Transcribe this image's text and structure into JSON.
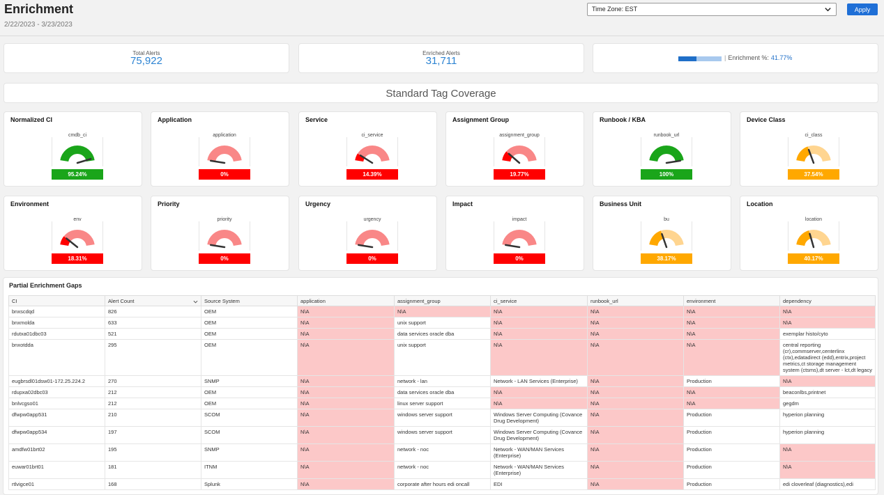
{
  "header": {
    "title": "Enrichment",
    "date_range": "2/22/2023 - 3/23/2023",
    "timezone": "Time Zone: EST",
    "apply_label": "Apply"
  },
  "kpis": {
    "total_label": "Total Alerts",
    "total_value": "75,922",
    "enriched_label": "Enriched Alerts",
    "enriched_value": "31,711",
    "enrichment_label": "Enrichment %:",
    "enrichment_value": "41.77%",
    "enrichment_fraction": 0.4177
  },
  "coverage_title": "Standard Tag Coverage",
  "colors": {
    "green": "#1aa51a",
    "red": "#ff0000",
    "orange": "#ffa800",
    "light_red": "#f98787",
    "light_orange": "#ffd590",
    "light_green": "#1aa51a",
    "accent": "#2c83d2"
  },
  "gauges": [
    {
      "title": "Normalized CI",
      "field": "cmdb_ci",
      "value": "95.24%",
      "fraction": 0.9524,
      "status": "green"
    },
    {
      "title": "Application",
      "field": "application",
      "value": "0%",
      "fraction": 0,
      "status": "red"
    },
    {
      "title": "Service",
      "field": "ci_service",
      "value": "14.39%",
      "fraction": 0.1439,
      "status": "red"
    },
    {
      "title": "Assignment Group",
      "field": "assignment_group",
      "value": "19.77%",
      "fraction": 0.1977,
      "status": "red"
    },
    {
      "title": "Runbook / KBA",
      "field": "runbook_url",
      "value": "100%",
      "fraction": 1,
      "status": "green"
    },
    {
      "title": "Device Class",
      "field": "ci_class",
      "value": "37.54%",
      "fraction": 0.3754,
      "status": "orange"
    },
    {
      "title": "Environment",
      "field": "env",
      "value": "18.31%",
      "fraction": 0.1831,
      "status": "red"
    },
    {
      "title": "Priority",
      "field": "priority",
      "value": "0%",
      "fraction": 0,
      "status": "red"
    },
    {
      "title": "Urgency",
      "field": "urgency",
      "value": "0%",
      "fraction": 0,
      "status": "red"
    },
    {
      "title": "Impact",
      "field": "impact",
      "value": "0%",
      "fraction": 0,
      "status": "red"
    },
    {
      "title": "Business Unit",
      "field": "bu",
      "value": "38.17%",
      "fraction": 0.3817,
      "status": "orange"
    },
    {
      "title": "Location",
      "field": "location",
      "value": "40.17%",
      "fraction": 0.4017,
      "status": "orange"
    }
  ],
  "table": {
    "title": "Partial Enrichment Gaps",
    "columns": [
      "CI",
      "Alert Count",
      "Source System",
      "application",
      "assignment_group",
      "ci_service",
      "runbook_url",
      "environment",
      "dependency"
    ],
    "rows": [
      [
        "bnxscdqd",
        "826",
        "OEM",
        "N\\A",
        "N\\A",
        "N\\A",
        "N\\A",
        "N\\A",
        "N\\A"
      ],
      [
        "bnxmolda",
        "633",
        "OEM",
        "N\\A",
        "unix support",
        "N\\A",
        "N\\A",
        "N\\A",
        "N\\A"
      ],
      [
        "rdutxa01dbc03",
        "521",
        "OEM",
        "N\\A",
        "data services oracle dba",
        "N\\A",
        "N\\A",
        "N\\A",
        "exemplar histo/cyto"
      ],
      [
        "bnxotdda",
        "295",
        "OEM",
        "N\\A",
        "unix support",
        "N\\A",
        "N\\A",
        "N\\A",
        "central reporting (cr),commserver,centerlinx (ctx),edatadirect (edd),entrix,project metrics,ct storage management system (ctsms),dt server - lct,dt legacy"
      ],
      [
        "eugbrsdl01dsw01-172.25.224.2",
        "270",
        "SNMP",
        "N\\A",
        "network - lan",
        "Network - LAN Services (Enterprise)",
        "N\\A",
        "Production",
        "N\\A"
      ],
      [
        "rdupxa02dbc03",
        "212",
        "OEM",
        "N\\A",
        "data services oracle dba",
        "N\\A",
        "N\\A",
        "N\\A",
        "beaconlbs,printnet"
      ],
      [
        "bnlvcgso01",
        "212",
        "OEM",
        "N\\A",
        "linux server support",
        "N\\A",
        "N\\A",
        "N\\A",
        "gegdm"
      ],
      [
        "dfwpw0app531",
        "210",
        "SCOM",
        "N\\A",
        "windows server support",
        "Windows Server Computing (Covance Drug Development)",
        "N\\A",
        "Production",
        "hyperion planning"
      ],
      [
        "dfwpw0app534",
        "197",
        "SCOM",
        "N\\A",
        "windows server support",
        "Windows Server Computing (Covance Drug Development)",
        "N\\A",
        "Production",
        "hyperion planning"
      ],
      [
        "amdfw01brt02",
        "195",
        "SNMP",
        "N\\A",
        "network - noc",
        "Network - WAN/MAN Services (Enterprise)",
        "N\\A",
        "Production",
        "N\\A"
      ],
      [
        "euwar01brt01",
        "181",
        "ITNM",
        "N\\A",
        "network - noc",
        "Network - WAN/MAN Services (Enterprise)",
        "N\\A",
        "Production",
        "N\\A"
      ],
      [
        "rtlvigce01",
        "168",
        "Splunk",
        "N\\A",
        "corporate after hours edi oncall",
        "EDI",
        "N\\A",
        "Production",
        "edi cloverleaf (diagnostics),edi"
      ]
    ]
  }
}
